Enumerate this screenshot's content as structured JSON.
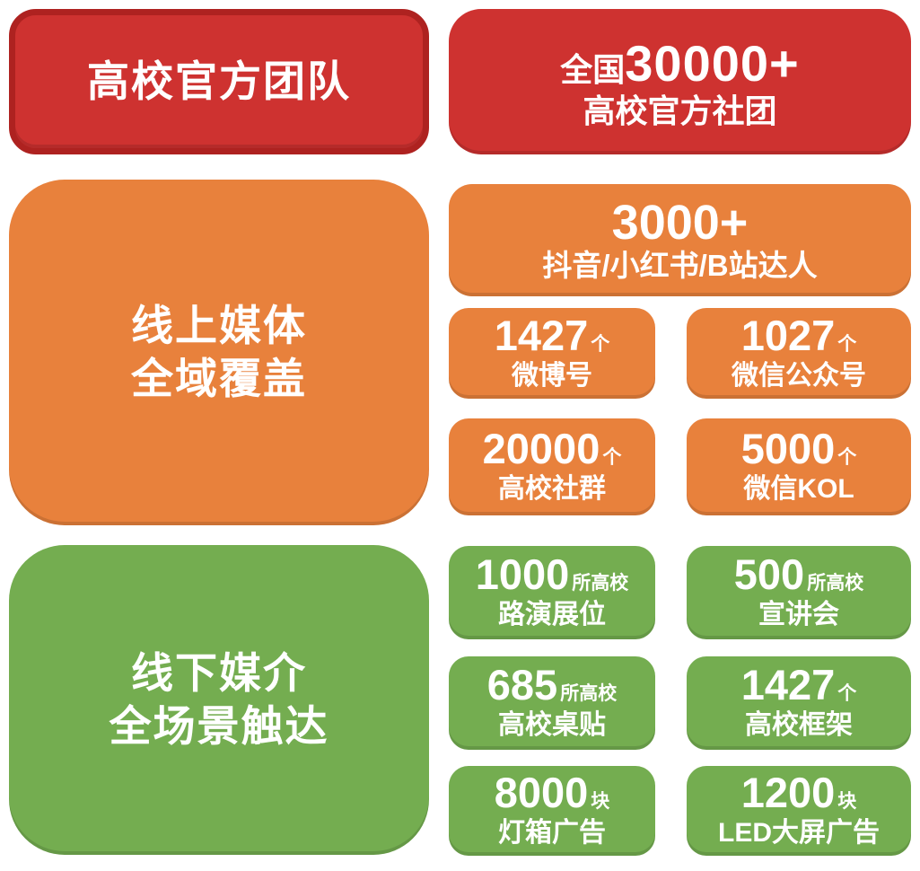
{
  "colors": {
    "red_fill": "#CE3230",
    "red_border": "#AE2220",
    "orange_fill": "#E8813C",
    "green_fill": "#74AD50",
    "text": "#FFFFFF"
  },
  "red_section": {
    "header": "高校官方团队",
    "card": {
      "prefix": "全国",
      "number": "30000+",
      "label": "高校官方社团"
    }
  },
  "orange_section": {
    "header_line1": "线上媒体",
    "header_line2": "全域覆盖",
    "hero": {
      "number": "3000+",
      "label": "抖音/小红书/B站达人"
    },
    "cards": [
      {
        "number": "1427",
        "unit": "个",
        "label": "微博号"
      },
      {
        "number": "1027",
        "unit": "个",
        "label": "微信公众号"
      },
      {
        "number": "20000",
        "unit": "个",
        "label": "高校社群"
      },
      {
        "number": "5000",
        "unit": "个",
        "label": "微信KOL"
      }
    ]
  },
  "green_section": {
    "header_line1": "线下媒介",
    "header_line2": "全场景触达",
    "cards": [
      {
        "number": "1000",
        "unit": "所高校",
        "label": "路演展位"
      },
      {
        "number": "500",
        "unit": "所高校",
        "label": "宣讲会"
      },
      {
        "number": "685",
        "unit": "所高校",
        "label": "高校桌贴"
      },
      {
        "number": "1427",
        "unit": "个",
        "label": "高校框架"
      },
      {
        "number": "8000",
        "unit": "块",
        "label": "灯箱广告"
      },
      {
        "number": "1200",
        "unit": "块",
        "label": "LED大屏广告"
      }
    ]
  }
}
